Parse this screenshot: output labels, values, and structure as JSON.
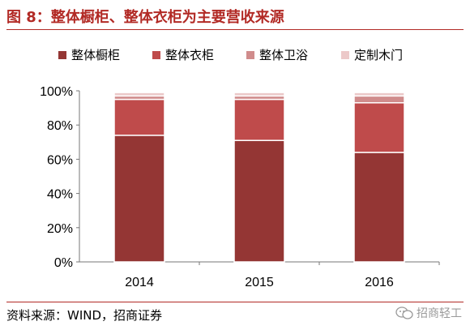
{
  "figure": {
    "title": "图 8：整体橱柜、整体衣柜为主要营收来源",
    "source": "资料来源：WIND，招商证券",
    "watermark": "招商轻工",
    "watermark_icon": "wechat-icon",
    "accent_color": "#b22a25"
  },
  "chart_data": {
    "type": "bar",
    "stacked": true,
    "categories": [
      "2014",
      "2015",
      "2016"
    ],
    "series": [
      {
        "name": "整体橱柜",
        "color": "#943634",
        "values": [
          74,
          71,
          64
        ]
      },
      {
        "name": "整体衣柜",
        "color": "#bf4b4b",
        "values": [
          21,
          24,
          29
        ]
      },
      {
        "name": "整体卫浴",
        "color": "#d08c8c",
        "values": [
          2,
          2,
          4
        ]
      },
      {
        "name": "定制木门",
        "color": "#ecc9c9",
        "values": [
          2,
          2,
          2
        ]
      }
    ],
    "ylim": [
      0,
      100
    ],
    "yticks": [
      "0%",
      "20%",
      "40%",
      "60%",
      "80%",
      "100%"
    ],
    "grid": false,
    "legend_position": "top"
  }
}
